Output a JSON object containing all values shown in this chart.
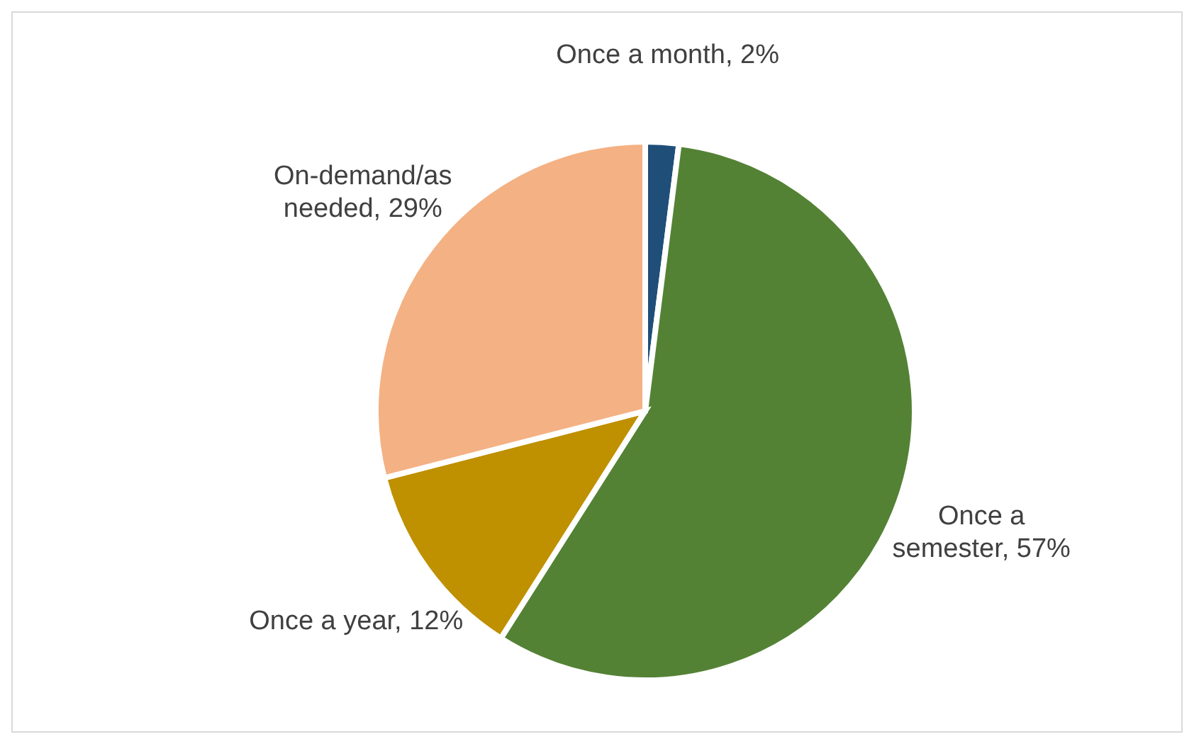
{
  "chart_data": {
    "type": "pie",
    "categories": [
      "Once a month",
      "Once a semester",
      "Once a year",
      "On-demand/as needed"
    ],
    "values": [
      2,
      57,
      12,
      29
    ],
    "value_labels": [
      "2%",
      "57%",
      "12%",
      "29%"
    ],
    "colors": [
      "#1f4e79",
      "#548235",
      "#bf9000",
      "#f4b183"
    ]
  }
}
